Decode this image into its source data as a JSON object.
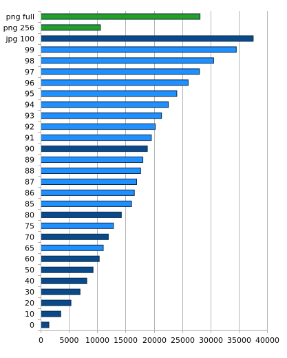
{
  "chart_data": {
    "type": "bar",
    "orientation": "horizontal",
    "title": "",
    "xlabel": "",
    "ylabel": "",
    "xlim": [
      0,
      40000
    ],
    "x_ticks": [
      "0",
      "5000",
      "10000",
      "15000",
      "20000",
      "25000",
      "30000",
      "35000",
      "40000"
    ],
    "grid": true,
    "colors": {
      "green": "#23a025",
      "dark_blue": "#0a4a8a",
      "light_blue": "#1e90ff",
      "outline": "#0a2a4a"
    },
    "categories": [
      "png full",
      "png 256",
      "jpg 100",
      "99",
      "98",
      "97",
      "96",
      "95",
      "94",
      "93",
      "92",
      "91",
      "90",
      "89",
      "88",
      "87",
      "86",
      "85",
      "80",
      "75",
      "70",
      "65",
      "60",
      "50",
      "40",
      "30",
      "20",
      "10",
      "0"
    ],
    "values": [
      28100,
      10500,
      37500,
      34500,
      30500,
      28000,
      26000,
      24000,
      22500,
      21300,
      20200,
      19500,
      18800,
      18000,
      17600,
      16900,
      16500,
      16000,
      14200,
      12800,
      11900,
      11000,
      10300,
      9200,
      8100,
      6900,
      5300,
      3500,
      1400
    ],
    "bar_colors": [
      "green",
      "green",
      "dark_blue",
      "light_blue",
      "light_blue",
      "light_blue",
      "light_blue",
      "light_blue",
      "light_blue",
      "light_blue",
      "light_blue",
      "light_blue",
      "dark_blue",
      "light_blue",
      "light_blue",
      "light_blue",
      "light_blue",
      "light_blue",
      "dark_blue",
      "light_blue",
      "dark_blue",
      "light_blue",
      "dark_blue",
      "dark_blue",
      "dark_blue",
      "dark_blue",
      "dark_blue",
      "dark_blue",
      "dark_blue"
    ]
  }
}
